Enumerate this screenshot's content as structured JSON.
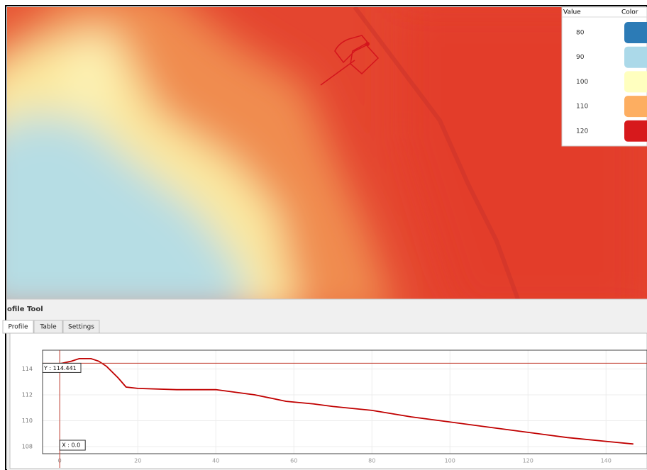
{
  "map_legend": {
    "headers": [
      "Value",
      "Color"
    ],
    "rows": [
      {
        "value": 80,
        "color": "#2c7bb6"
      },
      {
        "value": 90,
        "color": "#abd9e9"
      },
      {
        "value": 100,
        "color": "#ffffbf"
      },
      {
        "value": 110,
        "color": "#fdae61"
      },
      {
        "value": 120,
        "color": "#d7191c"
      }
    ]
  },
  "panel": {
    "title": "ofile Tool",
    "tabs": [
      "Profile",
      "Table",
      "Settings"
    ]
  },
  "chart_data": {
    "type": "line",
    "x": [
      0,
      3,
      5,
      8,
      10,
      12,
      15,
      17,
      20,
      30,
      40,
      50,
      58,
      65,
      70,
      80,
      90,
      100,
      110,
      120,
      130,
      140,
      147
    ],
    "values": [
      114.4,
      114.6,
      114.8,
      114.8,
      114.6,
      114.2,
      113.3,
      112.6,
      112.5,
      112.4,
      112.4,
      112.0,
      111.5,
      111.3,
      111.1,
      110.8,
      110.3,
      109.9,
      109.5,
      109.1,
      108.7,
      108.4,
      108.2
    ],
    "color": "#c00000",
    "xlim": [
      -4.4,
      150.5
    ],
    "ylim": [
      107.45,
      115.45
    ],
    "xticks": [
      0,
      20,
      40,
      60,
      80,
      100,
      120,
      140
    ],
    "yticks": [
      108,
      110,
      112,
      114
    ],
    "grid": true,
    "crosshair": {
      "x": 0,
      "y": 114.441,
      "x_label": "X : 0.0",
      "y_label": "Y : 114.441"
    }
  }
}
